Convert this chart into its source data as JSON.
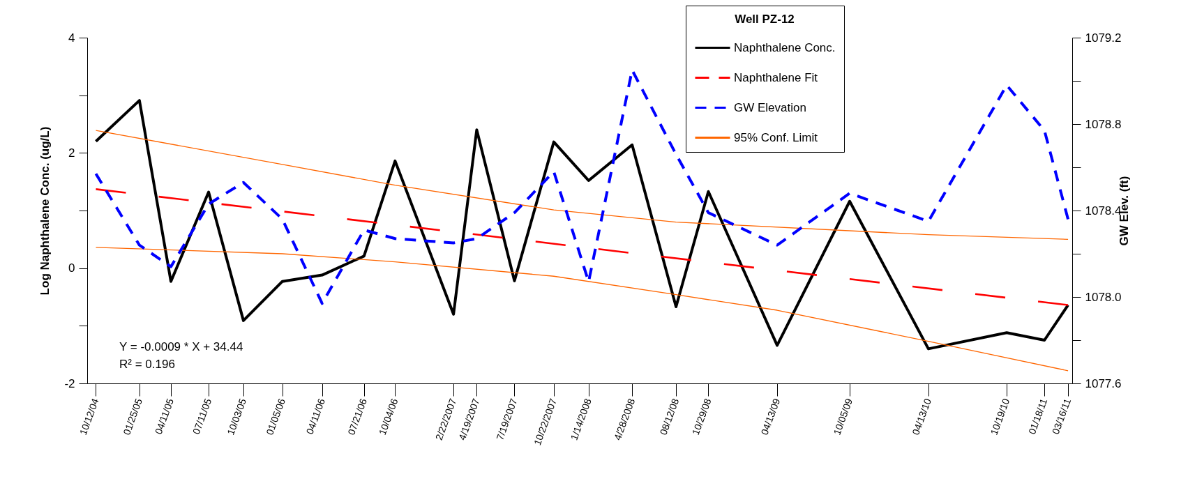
{
  "chart_data": {
    "type": "line",
    "ylabel": "Log Naphthalene Conc. (ug/L)",
    "y2label": "GW Elev. (ft)",
    "legend_title": "Well PZ-12",
    "legend": "top right",
    "annotations": [
      "Y = -0.0009 * X + 34.44",
      "R² = 0.196"
    ],
    "x": [
      "2004-10-12",
      "2005-01-25",
      "2005-04-11",
      "2005-07-11",
      "2005-10-03",
      "2006-01-05",
      "2006-04-11",
      "2006-07-21",
      "2006-10-04",
      "2007-02-22",
      "2007-04-19",
      "2007-07-19",
      "2007-10-22",
      "2008-01-14",
      "2008-04-28",
      "2008-08-12",
      "2008-10-29",
      "2009-04-13",
      "2009-10-05",
      "2010-04-13",
      "2010-10-19",
      "2011-01-18",
      "2011-03-16"
    ],
    "xlim": [
      "2004-09-21",
      "2011-03-26"
    ],
    "xticks": [
      {
        "value": "2004-10-12",
        "label": "10/12/04"
      },
      {
        "value": "2005-01-25",
        "label": "01/25/05"
      },
      {
        "value": "2005-04-11",
        "label": "04/11/05"
      },
      {
        "value": "2005-07-11",
        "label": "07/11/05"
      },
      {
        "value": "2005-10-03",
        "label": "10/03/05"
      },
      {
        "value": "2006-01-05",
        "label": "01/05/06"
      },
      {
        "value": "2006-04-11",
        "label": "04/11/06"
      },
      {
        "value": "2006-07-21",
        "label": "07/21/06"
      },
      {
        "value": "2006-10-04",
        "label": "10/04/06"
      },
      {
        "value": "2007-02-22",
        "label": "2/22/2007"
      },
      {
        "value": "2007-04-19",
        "label": "4/19/2007"
      },
      {
        "value": "2007-07-19",
        "label": "7/19/2007"
      },
      {
        "value": "2007-10-22",
        "label": "10/22/2007"
      },
      {
        "value": "2008-01-14",
        "label": "1/14/2008"
      },
      {
        "value": "2008-04-28",
        "label": "4/28/2008"
      },
      {
        "value": "2008-08-12",
        "label": "08/12/08"
      },
      {
        "value": "2008-10-29",
        "label": "10/29/08"
      },
      {
        "value": "2009-04-13",
        "label": "04/13/09"
      },
      {
        "value": "2009-10-05",
        "label": "10/05/09"
      },
      {
        "value": "2010-04-13",
        "label": "04/13/10"
      },
      {
        "value": "2010-10-19",
        "label": "10/19/10"
      },
      {
        "value": "2011-01-18",
        "label": "01/18/11"
      },
      {
        "value": "2011-03-16",
        "label": "03/16/11"
      }
    ],
    "ylim": [
      -2,
      4
    ],
    "yticks": [
      -2,
      {
        "value": -1,
        "label": null
      },
      0,
      {
        "value": 1,
        "label": null
      },
      2,
      {
        "value": 3,
        "label": null
      },
      4
    ],
    "y2lim": [
      1077.6,
      1079.2
    ],
    "y2ticks": [
      1077.6,
      {
        "value": 1077.8,
        "label": null
      },
      {
        "value": 1078.0,
        "label": "1078.0"
      },
      {
        "value": 1078.2,
        "label": null
      },
      1078.4,
      {
        "value": 1078.6,
        "label": null
      },
      1078.8,
      {
        "value": 1079.0,
        "label": null
      },
      1079.2
    ],
    "series": [
      {
        "name": "Naphthalene Conc.",
        "color": "#000000",
        "line_style": "solid",
        "values": [
          2.2,
          2.91,
          -0.23,
          1.32,
          -0.91,
          -0.23,
          -0.12,
          0.21,
          1.86,
          -0.8,
          2.4,
          -0.22,
          2.19,
          1.52,
          2.14,
          -0.67,
          1.33,
          -1.34,
          1.16,
          -1.4,
          -1.12,
          -1.25,
          -0.64
        ]
      },
      {
        "name": "Naphthalene Fit",
        "color": "#ff0000",
        "line_style": "dashed",
        "x": [
          "2004-10-12",
          "2011-03-16"
        ],
        "values": [
          1.37,
          -0.64
        ]
      },
      {
        "name": "GW Elevation",
        "color": "#0000ff",
        "line_style": "dashed",
        "axis": "y2",
        "values": [
          1078.57,
          1078.24,
          1078.14,
          1078.43,
          1078.53,
          1078.36,
          1077.97,
          1078.31,
          1078.27,
          1078.25,
          1078.27,
          1078.39,
          1078.58,
          1078.07,
          1079.05,
          1078.66,
          1078.39,
          1078.24,
          1078.48,
          1078.35,
          1078.98,
          1078.77,
          1078.36
        ]
      },
      {
        "name": "95% Conf. Limit",
        "color": "#ff6600",
        "line_style": "solid",
        "x": [
          "2004-10-12",
          "2006-01-05",
          "2006-10-04",
          "2007-10-22",
          "2008-08-12",
          "2010-04-13",
          "2011-03-16"
        ],
        "values": [
          2.39,
          1.8,
          1.44,
          1.01,
          0.8,
          0.58,
          0.5
        ]
      },
      {
        "color": "#ff6600",
        "line_style": "solid",
        "x": [
          "2004-10-12",
          "2006-01-05",
          "2006-10-04",
          "2007-10-22",
          "2008-08-12",
          "2009-04-13",
          "2010-04-13",
          "2011-03-16"
        ],
        "values": [
          0.36,
          0.25,
          0.11,
          -0.14,
          -0.46,
          -0.73,
          -1.27,
          -1.78
        ]
      }
    ]
  }
}
